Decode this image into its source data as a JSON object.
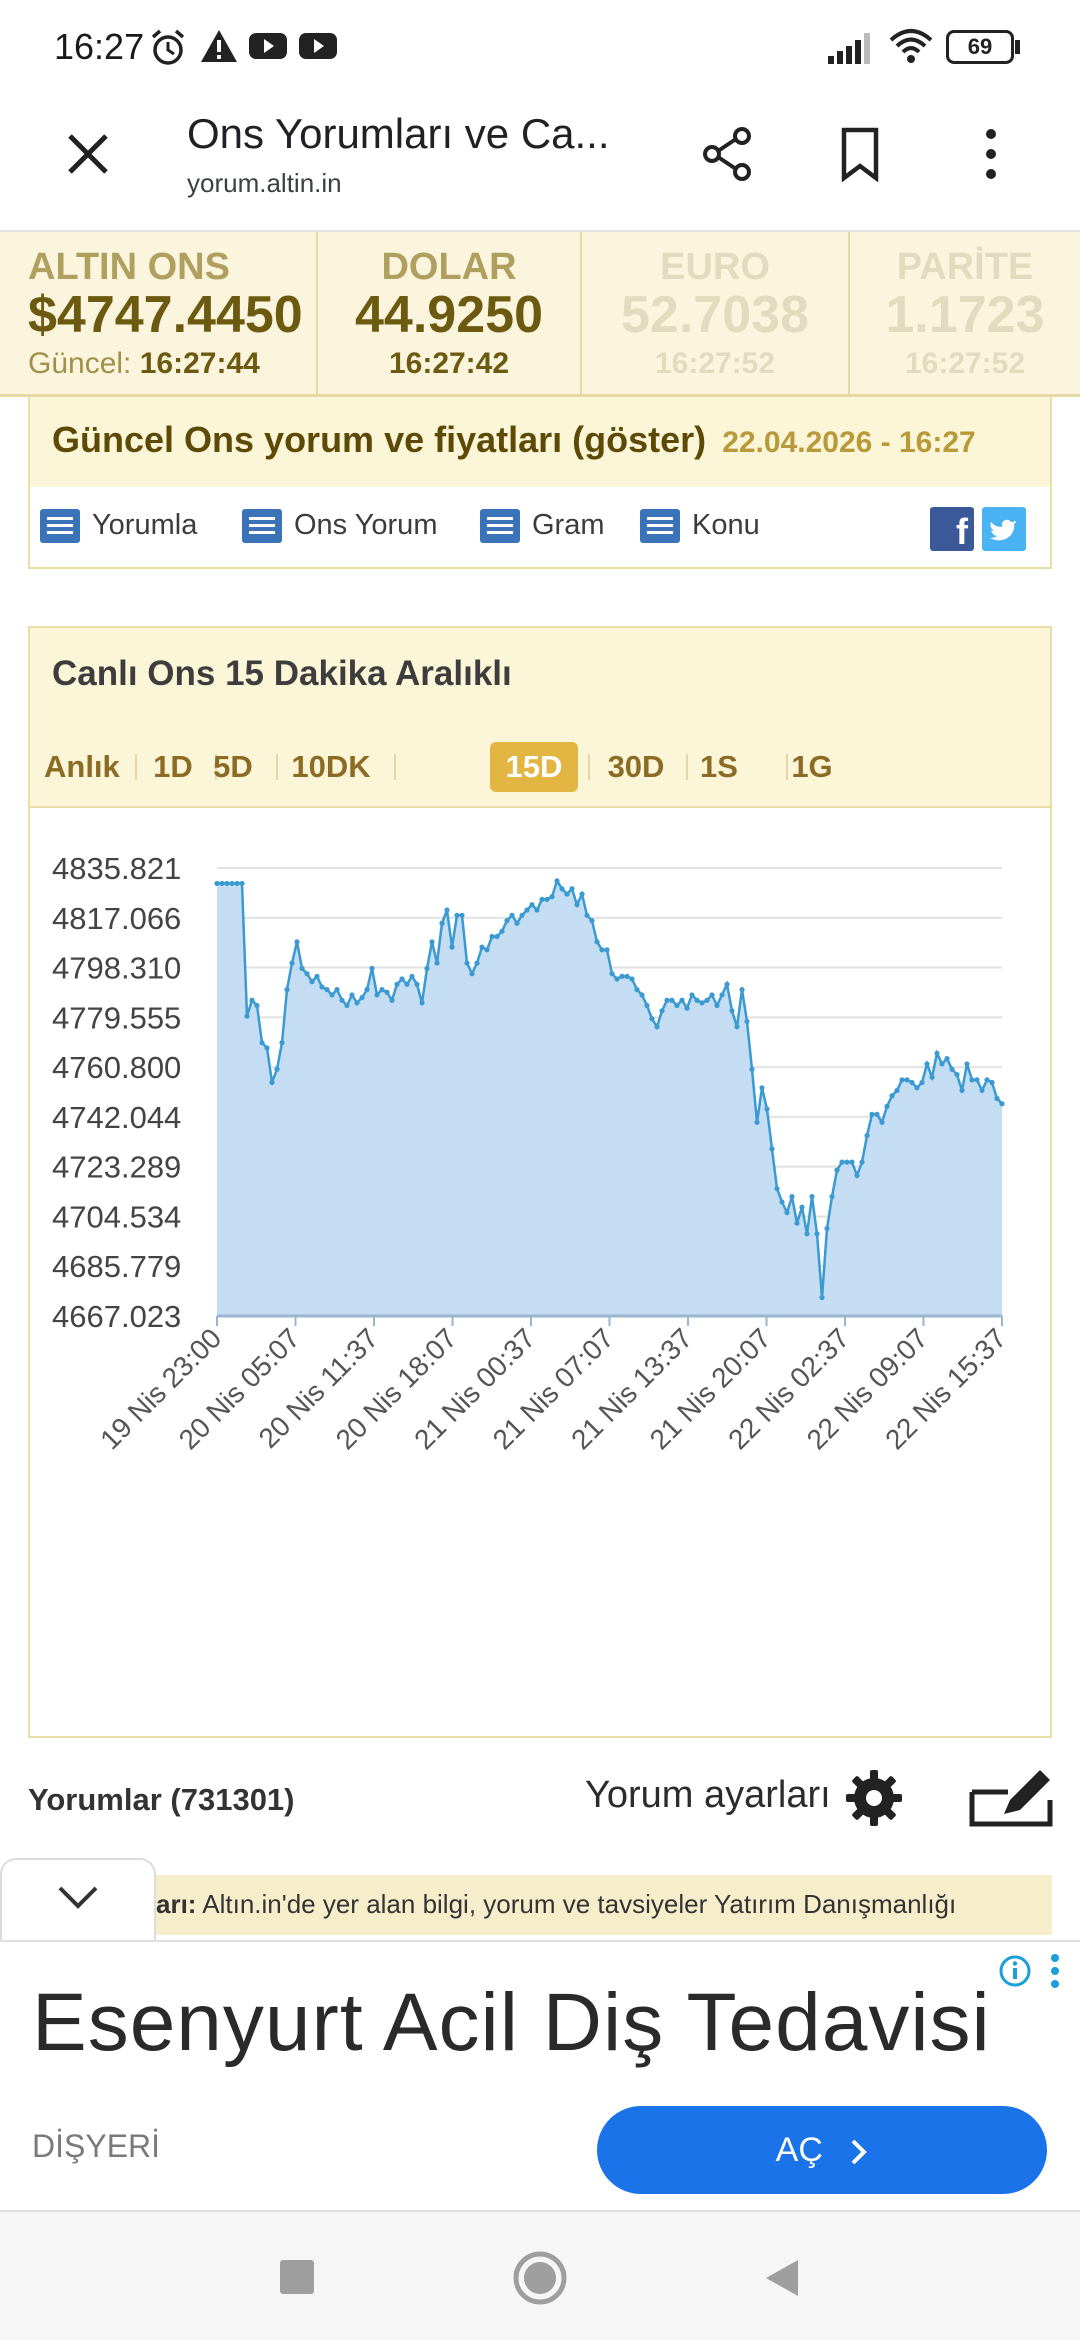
{
  "status_bar": {
    "time": "16:27",
    "battery": "69"
  },
  "browser": {
    "title": "Ons Yorumları ve Ca...",
    "url": "yorum.altin.in"
  },
  "ticker": [
    {
      "label": "ALTIN ONS",
      "value": "$4747.4450",
      "time_label": "Güncel:",
      "time": "16:27:44",
      "dim": false
    },
    {
      "label": "DOLAR",
      "value": "44.9250",
      "time_label": "",
      "time": "16:27:42",
      "dim": false
    },
    {
      "label": "EURO",
      "value": "52.7038",
      "time_label": "",
      "time": "16:27:52",
      "dim": true
    },
    {
      "label": "PARİTE",
      "value": "1.1723",
      "time_label": "",
      "time": "16:27:52",
      "dim": true
    }
  ],
  "info": {
    "title": "Güncel Ons yorum ve fiyatları (göster)",
    "date": "22.04.2026 - 16:27",
    "links": [
      "Yorumla",
      "Ons Yorum",
      "Gram",
      "Konu"
    ]
  },
  "chart_panel": {
    "title": "Canlı Ons 15 Dakika Aralıklı",
    "tabs": [
      "Anlık",
      "1D",
      "5D",
      "10DK",
      "15D",
      "30D",
      "1S",
      "1G"
    ],
    "active_tab": "15D"
  },
  "chart_data": {
    "type": "area",
    "ylim": [
      4667.023,
      4835.821
    ],
    "y_ticks": [
      "4835.821",
      "4817.066",
      "4798.310",
      "4779.555",
      "4760.800",
      "4742.044",
      "4723.289",
      "4704.534",
      "4685.779",
      "4667.023"
    ],
    "x_ticks": [
      "19 Nis 23:00",
      "20 Nis 05:07",
      "20 Nis 11:37",
      "20 Nis 18:07",
      "21 Nis 00:37",
      "21 Nis 07:07",
      "21 Nis 13:37",
      "21 Nis 20:07",
      "22 Nis 02:37",
      "22 Nis 09:07",
      "22 Nis 15:37"
    ],
    "values": [
      4830,
      4830,
      4830,
      4830,
      4830,
      4830,
      4780,
      4786,
      4784,
      4770,
      4768,
      4755,
      4760,
      4770,
      4790,
      4800,
      4808,
      4798,
      4796,
      4793,
      4795,
      4791,
      4790,
      4788,
      4790,
      4786,
      4784,
      4788,
      4785,
      4787,
      4790,
      4798,
      4788,
      4790,
      4789,
      4786,
      4792,
      4794,
      4792,
      4795,
      4792,
      4785,
      4798,
      4808,
      4800,
      4815,
      4820,
      4806,
      4818,
      4818,
      4800,
      4796,
      4800,
      4806,
      4805,
      4810,
      4810,
      4812,
      4816,
      4818,
      4815,
      4818,
      4820,
      4822,
      4820,
      4824,
      4824,
      4825,
      4831,
      4828,
      4826,
      4828,
      4822,
      4826,
      4818,
      4816,
      4808,
      4805,
      4805,
      4796,
      4794,
      4795,
      4795,
      4794,
      4790,
      4788,
      4784,
      4779,
      4776,
      4782,
      4786,
      4786,
      4784,
      4786,
      4783,
      4788,
      4786,
      4785,
      4786,
      4788,
      4784,
      4788,
      4792,
      4782,
      4776,
      4790,
      4778,
      4760,
      4740,
      4753,
      4745,
      4730,
      4715,
      4710,
      4706,
      4712,
      4702,
      4708,
      4698,
      4712,
      4698,
      4674,
      4700,
      4712,
      4722,
      4725,
      4725,
      4725,
      4720,
      4725,
      4735,
      4743,
      4743,
      4740,
      4746,
      4750,
      4752,
      4756,
      4756,
      4755,
      4753,
      4755,
      4762,
      4757,
      4766,
      4762,
      4764,
      4760,
      4758,
      4752,
      4762,
      4756,
      4756,
      4752,
      4756,
      4755,
      4749,
      4747
    ]
  },
  "comments": {
    "label": "Yorumlar (731301)",
    "settings_label": "Yorum ayarları"
  },
  "disclaimer": {
    "prefix": "arı:",
    "text": " Altın.in'de yer alan bilgi, yorum ve tavsiyeler Yatırım Danışmanlığı"
  },
  "ad": {
    "headline": "Esenyurt Acil Diş Tedavisi",
    "advertiser": "DİŞYERİ",
    "button_label": "AÇ"
  },
  "colors": {
    "chart_line": "#3a9ad1",
    "chart_fill": "#c4ddf2",
    "ad_button": "#1a73e8",
    "active_tab": "#e3b643"
  }
}
